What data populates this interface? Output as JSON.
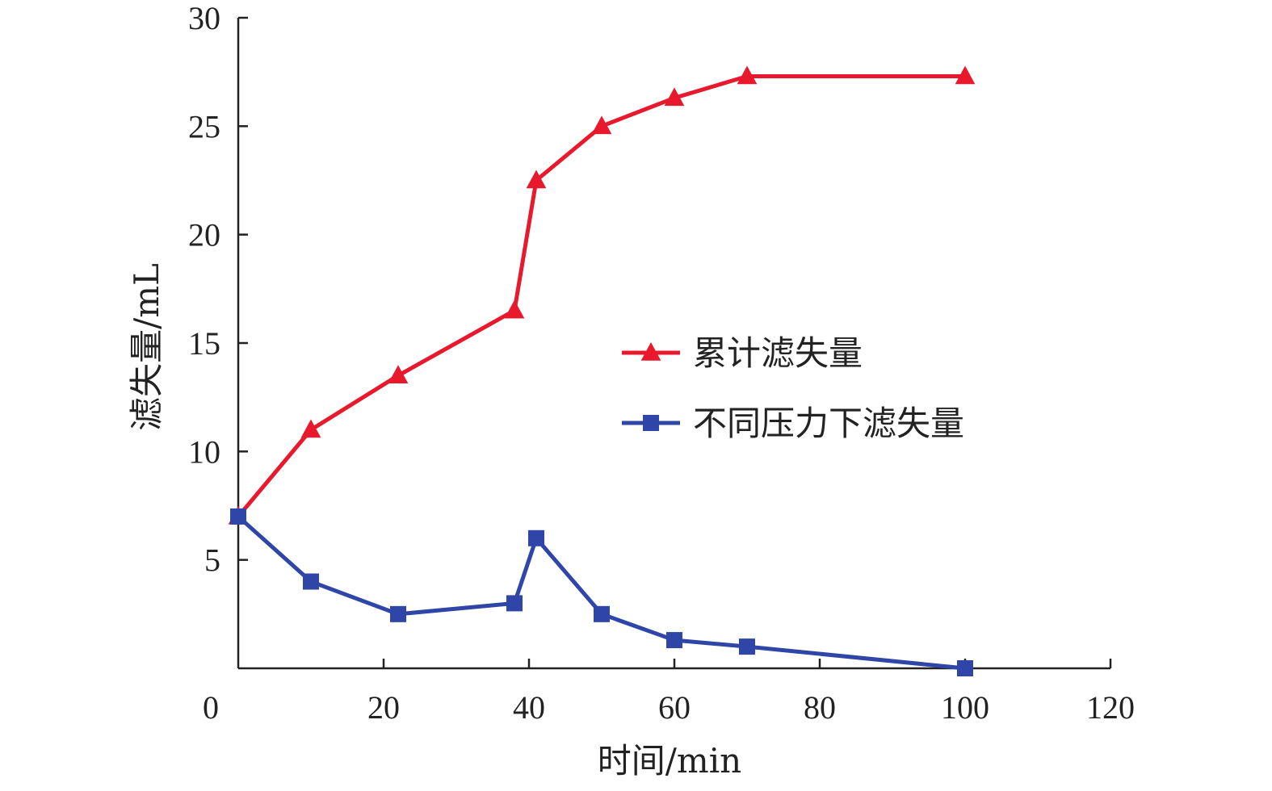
{
  "chart_data": {
    "type": "line",
    "xlabel": "时间/min",
    "ylabel": "滤失量/mL",
    "xlim": [
      0,
      120
    ],
    "ylim": [
      0,
      30
    ],
    "xticks": [
      0,
      20,
      40,
      60,
      80,
      100,
      120
    ],
    "yticks": [
      5,
      10,
      15,
      20,
      25,
      30
    ],
    "grid": false,
    "legend_position": "right-middle",
    "series": [
      {
        "name": "累计滤失量",
        "marker": "triangle",
        "color": "#e8192c",
        "x": [
          0,
          10,
          22,
          38,
          41,
          50,
          60,
          70,
          100
        ],
        "y": [
          7,
          11,
          13.5,
          16.5,
          22.5,
          25,
          26.3,
          27.3,
          27.3
        ]
      },
      {
        "name": "不同压力下滤失量",
        "marker": "square",
        "color": "#2f45a8",
        "x": [
          0,
          10,
          22,
          38,
          41,
          50,
          60,
          70,
          100
        ],
        "y": [
          7,
          4,
          2.5,
          3,
          6,
          2.5,
          1.3,
          1,
          0
        ]
      }
    ]
  }
}
